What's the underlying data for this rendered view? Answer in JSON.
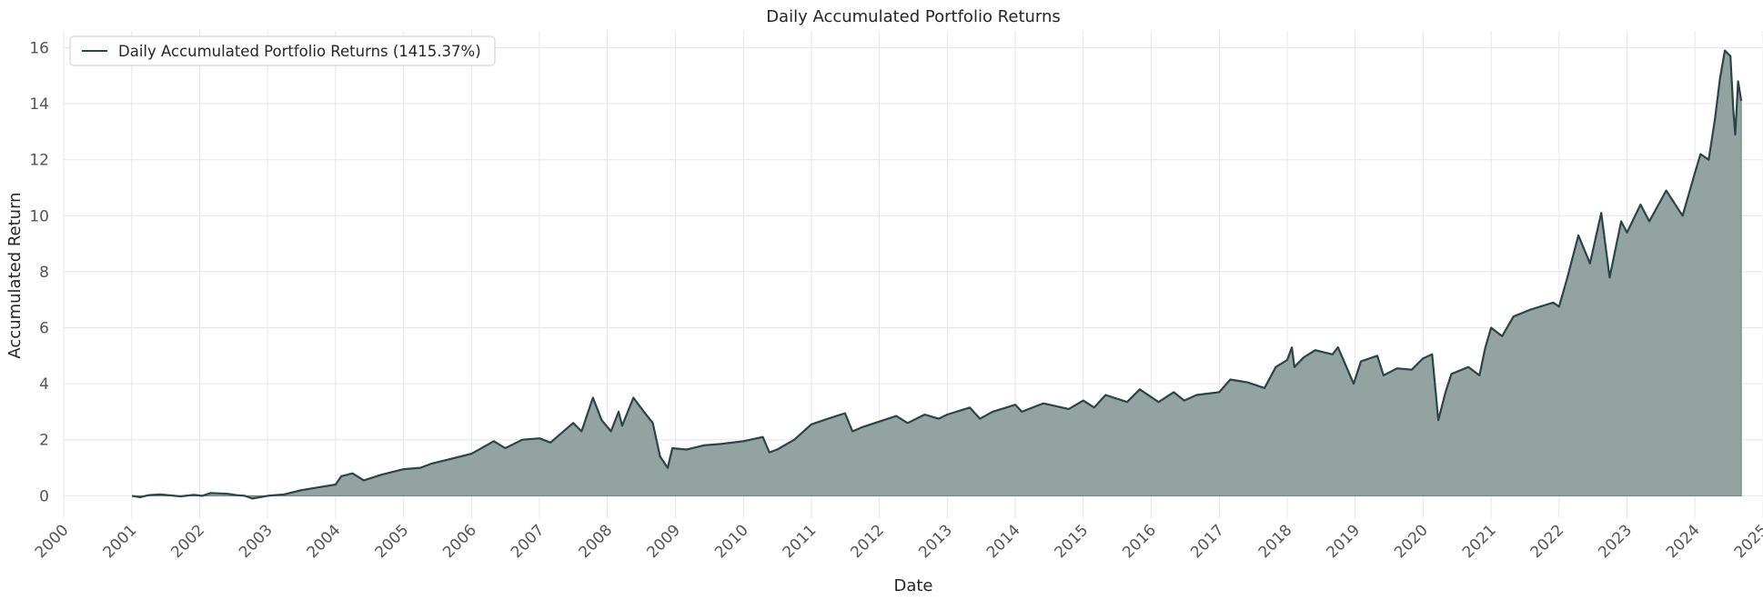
{
  "chart_data": {
    "type": "area",
    "title": "Daily Accumulated Portfolio Returns",
    "xlabel": "Date",
    "ylabel": "Accumulated Return",
    "legend": {
      "placement": "top-left",
      "entries": [
        "Daily Accumulated Portfolio Returns (1415.37%)"
      ]
    },
    "grid": true,
    "xlim": [
      "2000-01-01",
      "2025-01-01"
    ],
    "ylim": [
      -0.8,
      16.6
    ],
    "x_ticks": [
      "2000",
      "2001",
      "2002",
      "2003",
      "2004",
      "2005",
      "2006",
      "2007",
      "2008",
      "2009",
      "2010",
      "2011",
      "2012",
      "2013",
      "2014",
      "2015",
      "2016",
      "2017",
      "2018",
      "2019",
      "2020",
      "2021",
      "2022",
      "2023",
      "2024",
      "2025"
    ],
    "y_ticks": [
      "0",
      "2",
      "4",
      "6",
      "8",
      "10",
      "12",
      "14",
      "16"
    ],
    "colors": {
      "line": "#2b4447",
      "fill": "#93a3a1"
    },
    "series": [
      {
        "name": "Daily Accumulated Portfolio Returns (1415.37%)",
        "points": [
          [
            "2001-01-02",
            0.0
          ],
          [
            "2001-02-15",
            -0.05
          ],
          [
            "2001-04-01",
            0.02
          ],
          [
            "2001-06-01",
            0.05
          ],
          [
            "2001-09-20",
            -0.02
          ],
          [
            "2001-12-01",
            0.03
          ],
          [
            "2002-01-15",
            0.0
          ],
          [
            "2002-03-01",
            0.1
          ],
          [
            "2002-06-01",
            0.07
          ],
          [
            "2002-07-20",
            0.02
          ],
          [
            "2002-09-01",
            0.0
          ],
          [
            "2002-10-10",
            -0.1
          ],
          [
            "2003-01-01",
            0.0
          ],
          [
            "2003-04-01",
            0.05
          ],
          [
            "2003-07-01",
            0.2
          ],
          [
            "2003-10-01",
            0.3
          ],
          [
            "2004-01-01",
            0.4
          ],
          [
            "2004-02-01",
            0.7
          ],
          [
            "2004-04-01",
            0.8
          ],
          [
            "2004-06-01",
            0.55
          ],
          [
            "2004-09-01",
            0.75
          ],
          [
            "2005-01-01",
            0.95
          ],
          [
            "2005-04-01",
            1.0
          ],
          [
            "2005-06-01",
            1.15
          ],
          [
            "2005-09-01",
            1.3
          ],
          [
            "2006-01-01",
            1.5
          ],
          [
            "2006-05-01",
            1.95
          ],
          [
            "2006-07-01",
            1.7
          ],
          [
            "2006-10-01",
            2.0
          ],
          [
            "2007-01-01",
            2.05
          ],
          [
            "2007-03-01",
            1.9
          ],
          [
            "2007-07-01",
            2.6
          ],
          [
            "2007-08-15",
            2.3
          ],
          [
            "2007-10-15",
            3.5
          ],
          [
            "2007-12-01",
            2.7
          ],
          [
            "2008-01-20",
            2.3
          ],
          [
            "2008-03-01",
            3.0
          ],
          [
            "2008-03-20",
            2.5
          ],
          [
            "2008-05-20",
            3.5
          ],
          [
            "2008-07-15",
            3.0
          ],
          [
            "2008-09-01",
            2.6
          ],
          [
            "2008-10-10",
            1.4
          ],
          [
            "2008-11-20",
            1.0
          ],
          [
            "2008-12-15",
            1.7
          ],
          [
            "2009-03-01",
            1.65
          ],
          [
            "2009-06-01",
            1.8
          ],
          [
            "2009-09-01",
            1.85
          ],
          [
            "2010-01-01",
            1.95
          ],
          [
            "2010-04-15",
            2.1
          ],
          [
            "2010-05-20",
            1.55
          ],
          [
            "2010-07-01",
            1.65
          ],
          [
            "2010-10-01",
            2.0
          ],
          [
            "2011-01-01",
            2.55
          ],
          [
            "2011-04-01",
            2.75
          ],
          [
            "2011-07-01",
            2.95
          ],
          [
            "2011-08-10",
            2.3
          ],
          [
            "2011-10-01",
            2.45
          ],
          [
            "2012-01-01",
            2.65
          ],
          [
            "2012-04-01",
            2.85
          ],
          [
            "2012-06-01",
            2.6
          ],
          [
            "2012-09-01",
            2.9
          ],
          [
            "2012-11-15",
            2.75
          ],
          [
            "2013-01-01",
            2.9
          ],
          [
            "2013-05-01",
            3.15
          ],
          [
            "2013-06-25",
            2.75
          ],
          [
            "2013-09-01",
            3.0
          ],
          [
            "2014-01-01",
            3.25
          ],
          [
            "2014-02-05",
            3.0
          ],
          [
            "2014-06-01",
            3.3
          ],
          [
            "2014-10-15",
            3.1
          ],
          [
            "2015-01-01",
            3.4
          ],
          [
            "2015-03-01",
            3.15
          ],
          [
            "2015-05-01",
            3.6
          ],
          [
            "2015-08-25",
            3.35
          ],
          [
            "2015-11-01",
            3.8
          ],
          [
            "2016-02-10",
            3.35
          ],
          [
            "2016-05-01",
            3.7
          ],
          [
            "2016-06-27",
            3.4
          ],
          [
            "2016-09-01",
            3.6
          ],
          [
            "2017-01-01",
            3.7
          ],
          [
            "2017-03-01",
            4.15
          ],
          [
            "2017-06-01",
            4.05
          ],
          [
            "2017-09-01",
            3.85
          ],
          [
            "2017-11-01",
            4.6
          ],
          [
            "2018-01-01",
            4.85
          ],
          [
            "2018-01-26",
            5.3
          ],
          [
            "2018-02-09",
            4.6
          ],
          [
            "2018-04-01",
            4.95
          ],
          [
            "2018-06-01",
            5.2
          ],
          [
            "2018-09-01",
            5.05
          ],
          [
            "2018-10-01",
            5.3
          ],
          [
            "2018-12-24",
            4.0
          ],
          [
            "2019-02-01",
            4.8
          ],
          [
            "2019-04-30",
            5.0
          ],
          [
            "2019-06-03",
            4.3
          ],
          [
            "2019-08-15",
            4.55
          ],
          [
            "2019-11-01",
            4.5
          ],
          [
            "2019-12-31",
            4.9
          ],
          [
            "2020-02-19",
            5.05
          ],
          [
            "2020-03-23",
            2.7
          ],
          [
            "2020-05-01",
            3.7
          ],
          [
            "2020-06-01",
            4.35
          ],
          [
            "2020-09-01",
            4.6
          ],
          [
            "2020-10-30",
            4.3
          ],
          [
            "2020-12-01",
            5.3
          ],
          [
            "2021-01-01",
            6.0
          ],
          [
            "2021-03-01",
            5.7
          ],
          [
            "2021-05-01",
            6.4
          ],
          [
            "2021-08-01",
            6.65
          ],
          [
            "2021-12-01",
            6.9
          ],
          [
            "2022-01-01",
            6.75
          ],
          [
            "2022-02-15",
            7.8
          ],
          [
            "2022-04-15",
            9.3
          ],
          [
            "2022-06-16",
            8.3
          ],
          [
            "2022-08-16",
            10.1
          ],
          [
            "2022-09-30",
            7.8
          ],
          [
            "2022-12-01",
            9.8
          ],
          [
            "2023-01-01",
            9.4
          ],
          [
            "2023-03-15",
            10.4
          ],
          [
            "2023-05-01",
            9.8
          ],
          [
            "2023-07-31",
            10.9
          ],
          [
            "2023-10-27",
            10.0
          ],
          [
            "2023-12-31",
            11.5
          ],
          [
            "2024-01-31",
            12.2
          ],
          [
            "2024-03-15",
            12.0
          ],
          [
            "2024-04-19",
            13.5
          ],
          [
            "2024-05-15",
            14.9
          ],
          [
            "2024-06-10",
            15.9
          ],
          [
            "2024-07-10",
            15.7
          ],
          [
            "2024-07-25",
            13.8
          ],
          [
            "2024-08-05",
            12.9
          ],
          [
            "2024-08-20",
            14.8
          ],
          [
            "2024-09-06",
            14.1
          ]
        ]
      }
    ]
  }
}
